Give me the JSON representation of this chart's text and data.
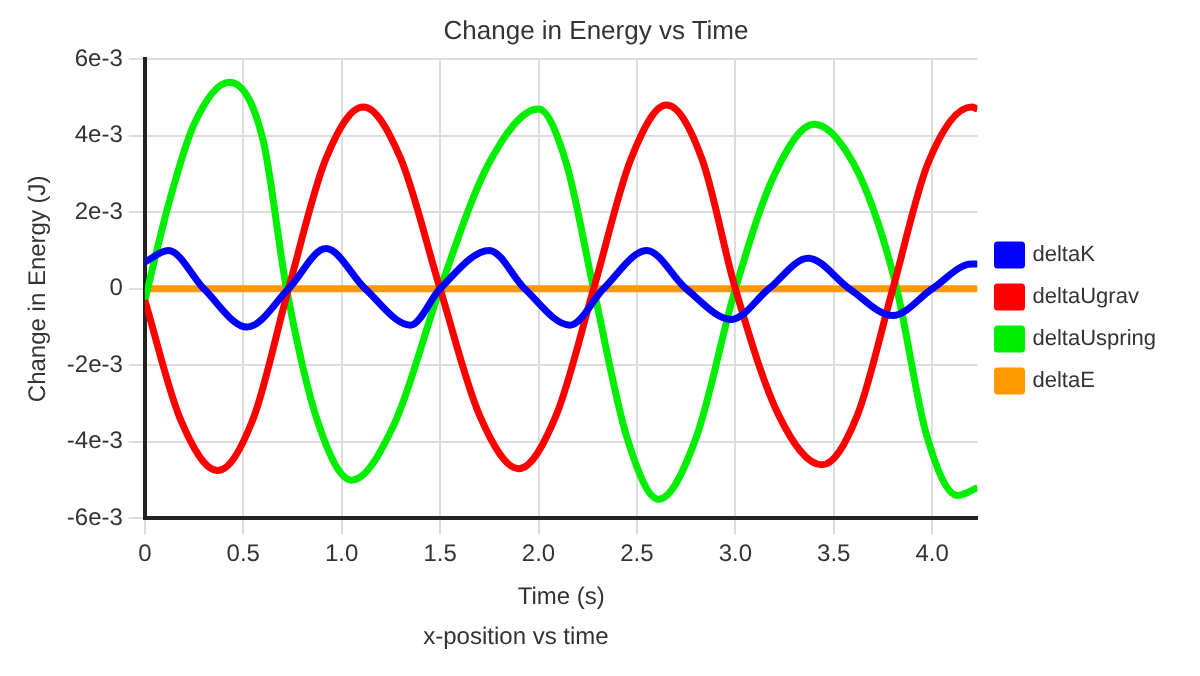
{
  "chart_data": {
    "type": "line",
    "title": "Change in Energy vs Time",
    "xlabel": "Time (s)",
    "ylabel": "Change in Energy (J)",
    "annotations": [
      "x-position vs time"
    ],
    "xlim": [
      0,
      4.23
    ],
    "xticks": [
      {
        "value": 0,
        "label": "0"
      },
      {
        "value": 0.5,
        "label": "0.5"
      },
      {
        "value": 1,
        "label": "1.0"
      },
      {
        "value": 1.5,
        "label": "1.5"
      },
      {
        "value": 2,
        "label": "2.0"
      },
      {
        "value": 2.5,
        "label": "2.5"
      },
      {
        "value": 3,
        "label": "3.0"
      },
      {
        "value": 3.5,
        "label": "3.5"
      },
      {
        "value": 4,
        "label": "4.0"
      }
    ],
    "ylim": [
      -0.006,
      0.006
    ],
    "yticks": [
      {
        "value": -0.006,
        "label": "-6e-3"
      },
      {
        "value": -0.004,
        "label": "-4e-3"
      },
      {
        "value": -0.002,
        "label": "-2e-3"
      },
      {
        "value": 0,
        "label": "0"
      },
      {
        "value": 0.002,
        "label": "2e-3"
      },
      {
        "value": 0.004,
        "label": "4e-3"
      },
      {
        "value": 0.006,
        "label": "6e-3"
      }
    ],
    "grid": true,
    "legend": "right",
    "marker": "none",
    "line_style": "solid",
    "series": [
      {
        "name": "deltaK",
        "color": "#0000ff",
        "x": [
          0,
          0.12,
          0.3,
          0.52,
          0.73,
          0.92,
          1.12,
          1.35,
          1.5,
          1.75,
          1.93,
          2.16,
          2.33,
          2.55,
          2.75,
          2.98,
          3.17,
          3.37,
          3.58,
          3.8,
          4.0,
          4.2,
          4.23
        ],
        "values": [
          0.0007,
          0.001,
          0,
          -0.001,
          0,
          0.00105,
          0,
          -0.00095,
          0,
          0.001,
          0,
          -0.00095,
          0,
          0.001,
          0,
          -0.0008,
          0,
          0.0008,
          0,
          -0.0007,
          0,
          0.00065,
          0.00065
        ]
      },
      {
        "name": "deltaUgrav",
        "color": "#ff0000",
        "x": [
          0,
          0.18,
          0.37,
          0.55,
          0.73,
          0.92,
          1.11,
          1.3,
          1.5,
          1.7,
          1.9,
          2.09,
          2.28,
          2.47,
          2.65,
          2.83,
          3.0,
          3.22,
          3.44,
          3.62,
          3.8,
          3.98,
          4.2,
          4.23
        ],
        "values": [
          -0.0003,
          -0.0034,
          -0.00475,
          -0.0034,
          0,
          0.0034,
          0.00475,
          0.0034,
          0,
          -0.0033,
          -0.0047,
          -0.0033,
          0,
          0.0034,
          0.0048,
          0.0034,
          0,
          -0.0033,
          -0.0046,
          -0.0033,
          0,
          0.0033,
          0.00475,
          0.0047
        ]
      },
      {
        "name": "deltaUspring",
        "color": "#00ee00",
        "x": [
          0,
          0.12,
          0.25,
          0.43,
          0.6,
          0.72,
          0.88,
          1.05,
          1.27,
          1.5,
          1.75,
          2.0,
          2.14,
          2.28,
          2.45,
          2.61,
          2.8,
          3.0,
          3.2,
          3.4,
          3.52,
          3.67,
          3.82,
          3.97,
          4.13,
          4.23
        ],
        "values": [
          -0.0003,
          0.0022,
          0.0043,
          0.0054,
          0.0039,
          0,
          -0.0035,
          -0.005,
          -0.0035,
          0,
          0.0033,
          0.0047,
          0.0033,
          0,
          -0.0039,
          -0.0055,
          -0.0039,
          0,
          0.003,
          0.0043,
          0.0039,
          0.0025,
          0,
          -0.0038,
          -0.0054,
          -0.0052
        ]
      },
      {
        "name": "deltaE",
        "color": "#ff9900",
        "x": [
          0,
          1,
          2,
          3,
          4.23
        ],
        "values": [
          0,
          0,
          0,
          0,
          0
        ]
      }
    ]
  }
}
